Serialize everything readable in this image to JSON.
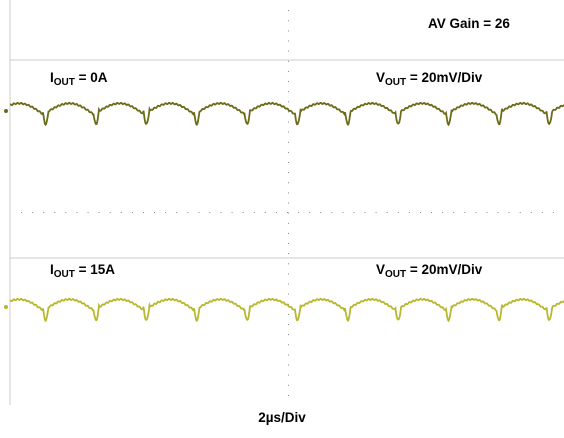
{
  "annotations": {
    "gain": "AV Gain = 26",
    "time_div": "2µs/Div"
  },
  "chart_data": {
    "type": "line",
    "title": "",
    "xlabel": "2µs/Div",
    "ylabel": "",
    "grid": "center-axes dotted",
    "horizontal_divisions": 10,
    "vertical_divisions": 8,
    "panels": [
      {
        "name": "top",
        "current_label": {
          "var": "I",
          "sub": "OUT",
          "rest": " = 0A"
        },
        "voltage_label": {
          "var": "V",
          "sub": "OUT",
          "rest": " = 20mV/Div"
        },
        "trace_color": "#6b6b18",
        "ripple_cycles": 11,
        "ripple_pkpk_div": 0.4
      },
      {
        "name": "bottom",
        "current_label": {
          "var": "I",
          "sub": "OUT",
          "rest": " = 15A"
        },
        "voltage_label": {
          "var": "V",
          "sub": "OUT",
          "rest": " = 20mV/Div"
        },
        "trace_color": "#b8b830",
        "ripple_cycles": 11,
        "ripple_pkpk_div": 0.4
      }
    ]
  }
}
